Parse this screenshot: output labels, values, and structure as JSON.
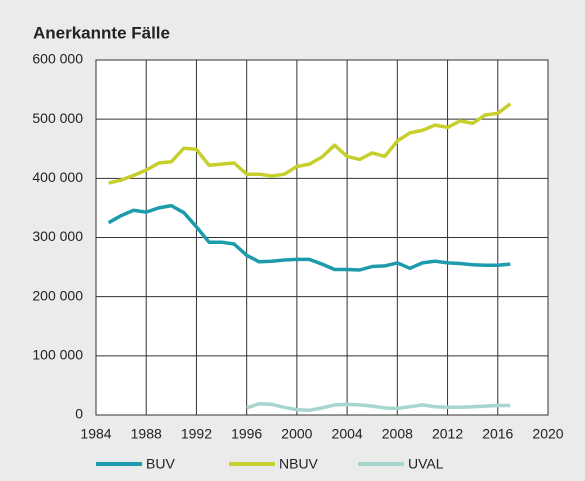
{
  "chart_data": {
    "type": "line",
    "title": "Anerkannte Fälle",
    "x": [
      1985,
      1986,
      1987,
      1988,
      1989,
      1990,
      1991,
      1992,
      1993,
      1994,
      1995,
      1996,
      1997,
      1998,
      1999,
      2000,
      2001,
      2002,
      2003,
      2004,
      2005,
      2006,
      2007,
      2008,
      2009,
      2010,
      2011,
      2012,
      2013,
      2014,
      2015,
      2016,
      2017
    ],
    "series": [
      {
        "name": "BUV",
        "color": "#1b9bab",
        "values": [
          325000,
          337000,
          346000,
          343000,
          350000,
          354000,
          342000,
          318000,
          292000,
          292000,
          289000,
          270000,
          259000,
          260000,
          262000,
          263000,
          263000,
          255000,
          246000,
          246000,
          245000,
          251000,
          252000,
          257000,
          248000,
          257000,
          260000,
          257000,
          256000,
          254000,
          253000,
          253000,
          255000
        ]
      },
      {
        "name": "NBUV",
        "color": "#c6cf2c",
        "values": [
          392000,
          397000,
          405000,
          414000,
          426000,
          428000,
          451000,
          449000,
          422000,
          424000,
          426000,
          407000,
          407000,
          404000,
          407000,
          420000,
          424000,
          436000,
          456000,
          437000,
          432000,
          443000,
          437000,
          463000,
          477000,
          481000,
          490000,
          486000,
          497000,
          493000,
          507000,
          510000,
          526000
        ]
      },
      {
        "name": "UVAL",
        "color": "#a6d6ce",
        "values": [
          null,
          null,
          null,
          null,
          null,
          null,
          null,
          null,
          null,
          null,
          null,
          12000,
          19000,
          18000,
          13000,
          9000,
          8000,
          12000,
          17000,
          18000,
          17000,
          15000,
          12000,
          11000,
          14000,
          17000,
          14000,
          13000,
          13000,
          14000,
          15000,
          16000,
          16000
        ]
      }
    ],
    "xlim": [
      1984,
      2020
    ],
    "xticks": [
      1984,
      1988,
      1992,
      1996,
      2000,
      2004,
      2008,
      2012,
      2016,
      2020
    ],
    "ylim": [
      0,
      600000
    ],
    "yticks": [
      0,
      {
        "value": 100000,
        "label": "100 000"
      },
      {
        "value": 200000,
        "label": "200 000"
      },
      {
        "value": 300000,
        "label": "300 000"
      },
      {
        "value": 400000,
        "label": "400 000"
      },
      {
        "value": 500000,
        "label": "500 000"
      },
      {
        "value": 600000,
        "label": "600 000"
      }
    ],
    "grid": true,
    "legend": "bottom"
  }
}
